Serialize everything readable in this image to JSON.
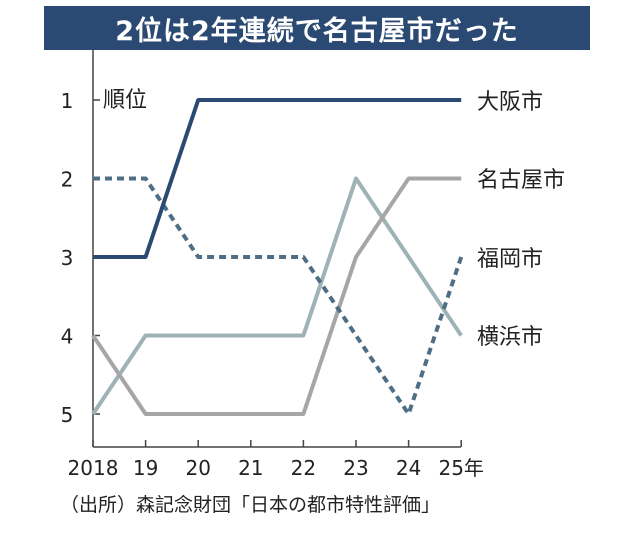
{
  "title": "2位は2年連続で名古屋市だった",
  "source": "（出所）森記念財団「日本の都市特性評価」",
  "chart_data": {
    "type": "line",
    "ylabel": "順位",
    "x": [
      "2018",
      "19",
      "20",
      "21",
      "22",
      "23",
      "24",
      "25年"
    ],
    "y_ticks": [
      1,
      2,
      3,
      4,
      5
    ],
    "ylim": [
      1,
      5
    ],
    "y_inverted": true,
    "series": [
      {
        "name": "大阪市",
        "values": [
          3,
          3,
          1,
          1,
          1,
          1,
          1,
          1
        ],
        "color": "#2b4a73",
        "dashed": false
      },
      {
        "name": "名古屋市",
        "values": [
          4,
          5,
          5,
          5,
          5,
          3,
          2,
          2
        ],
        "color": "#a6a6a6",
        "dashed": false
      },
      {
        "name": "福岡市",
        "values": [
          2,
          2,
          3,
          3,
          3,
          4,
          5,
          3
        ],
        "color": "#4d6e85",
        "dashed": true
      },
      {
        "name": "横浜市",
        "values": [
          5,
          4,
          4,
          4,
          4,
          2,
          3,
          4
        ],
        "color": "#9fb2b5",
        "dashed": false
      }
    ],
    "legend_placement": "right"
  }
}
